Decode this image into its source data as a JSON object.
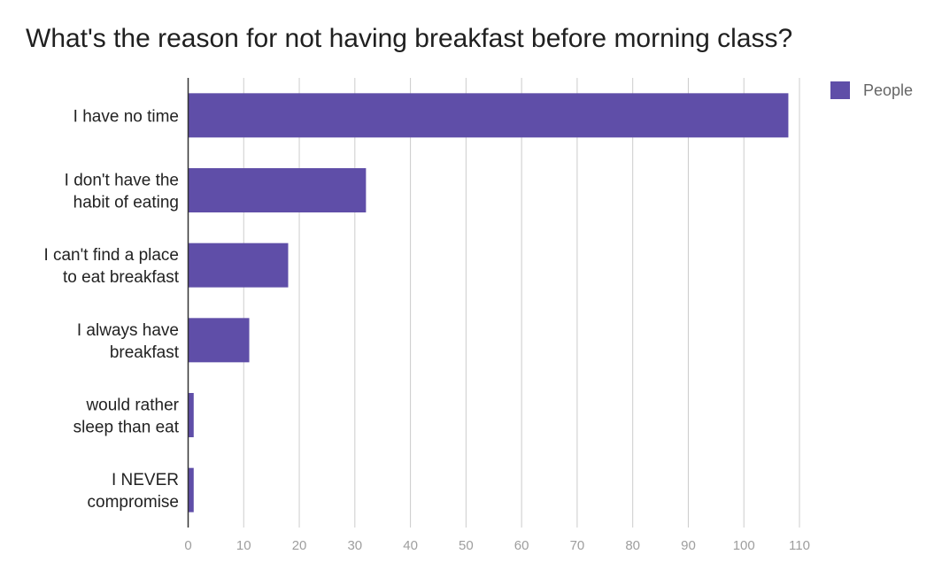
{
  "chart_data": {
    "type": "bar",
    "orientation": "horizontal",
    "title": "What's the reason for not having breakfast before morning class?",
    "categories": [
      [
        "I have no time"
      ],
      [
        "I don't have the",
        "habit of eating"
      ],
      [
        "I can't find a place",
        "to eat breakfast"
      ],
      [
        "I always have",
        "breakfast"
      ],
      [
        "would rather",
        "sleep than eat"
      ],
      [
        "I NEVER",
        "compromise"
      ]
    ],
    "series": [
      {
        "name": "People",
        "color": "#5f4ea8",
        "values": [
          108,
          32,
          18,
          11,
          1,
          1
        ]
      }
    ],
    "xlim": [
      0,
      110
    ],
    "xticks": [
      0,
      10,
      20,
      30,
      40,
      50,
      60,
      70,
      80,
      90,
      100,
      110
    ],
    "xlabel": "",
    "ylabel": "",
    "grid": true,
    "legend_position": "top-right"
  }
}
